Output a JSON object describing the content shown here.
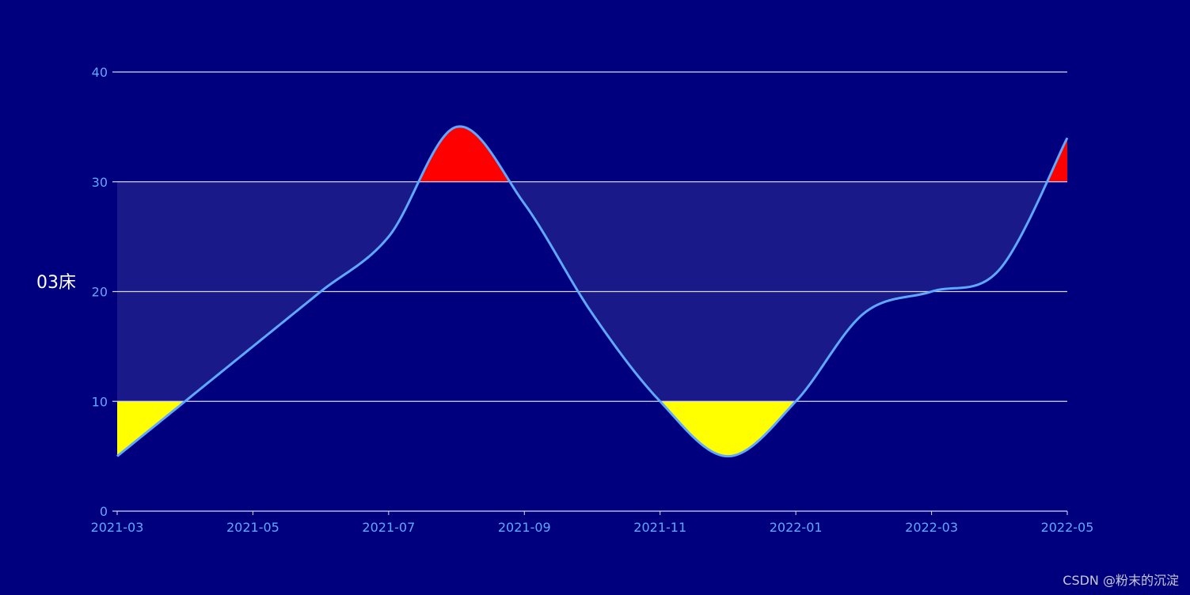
{
  "chart_data": {
    "type": "area",
    "ylabel": "03床",
    "x": [
      "2021-03",
      "2021-04",
      "2021-05",
      "2021-06",
      "2021-07",
      "2021-08",
      "2021-09",
      "2021-10",
      "2021-11",
      "2021-12",
      "2022-01",
      "2022-02",
      "2022-03",
      "2022-04",
      "2022-05"
    ],
    "x_tick_labels": [
      "2021-03",
      "2021-05",
      "2021-07",
      "2021-09",
      "2021-11",
      "2022-01",
      "2022-03",
      "2022-05"
    ],
    "series": [
      {
        "values": [
          5,
          10,
          15,
          20,
          25,
          35,
          28,
          18,
          10,
          5,
          10,
          18,
          20,
          22,
          34
        ]
      }
    ],
    "ylim": [
      0,
      40
    ],
    "y_ticks": [
      0,
      10,
      20,
      30,
      40
    ],
    "thresholds": {
      "low": 10,
      "high": 30
    },
    "grid": true
  },
  "colors": {
    "background": "#00007f",
    "line": "#5fa8ff",
    "band_fill": "#19198a",
    "above_high_fill": "#ff0000",
    "below_low_fill": "#ffff00",
    "grid": "#d8d8f0",
    "tick_text": "#5fa8ff",
    "ylabel_text": "#ffffff"
  },
  "watermark": "CSDN @粉末的沉淀"
}
